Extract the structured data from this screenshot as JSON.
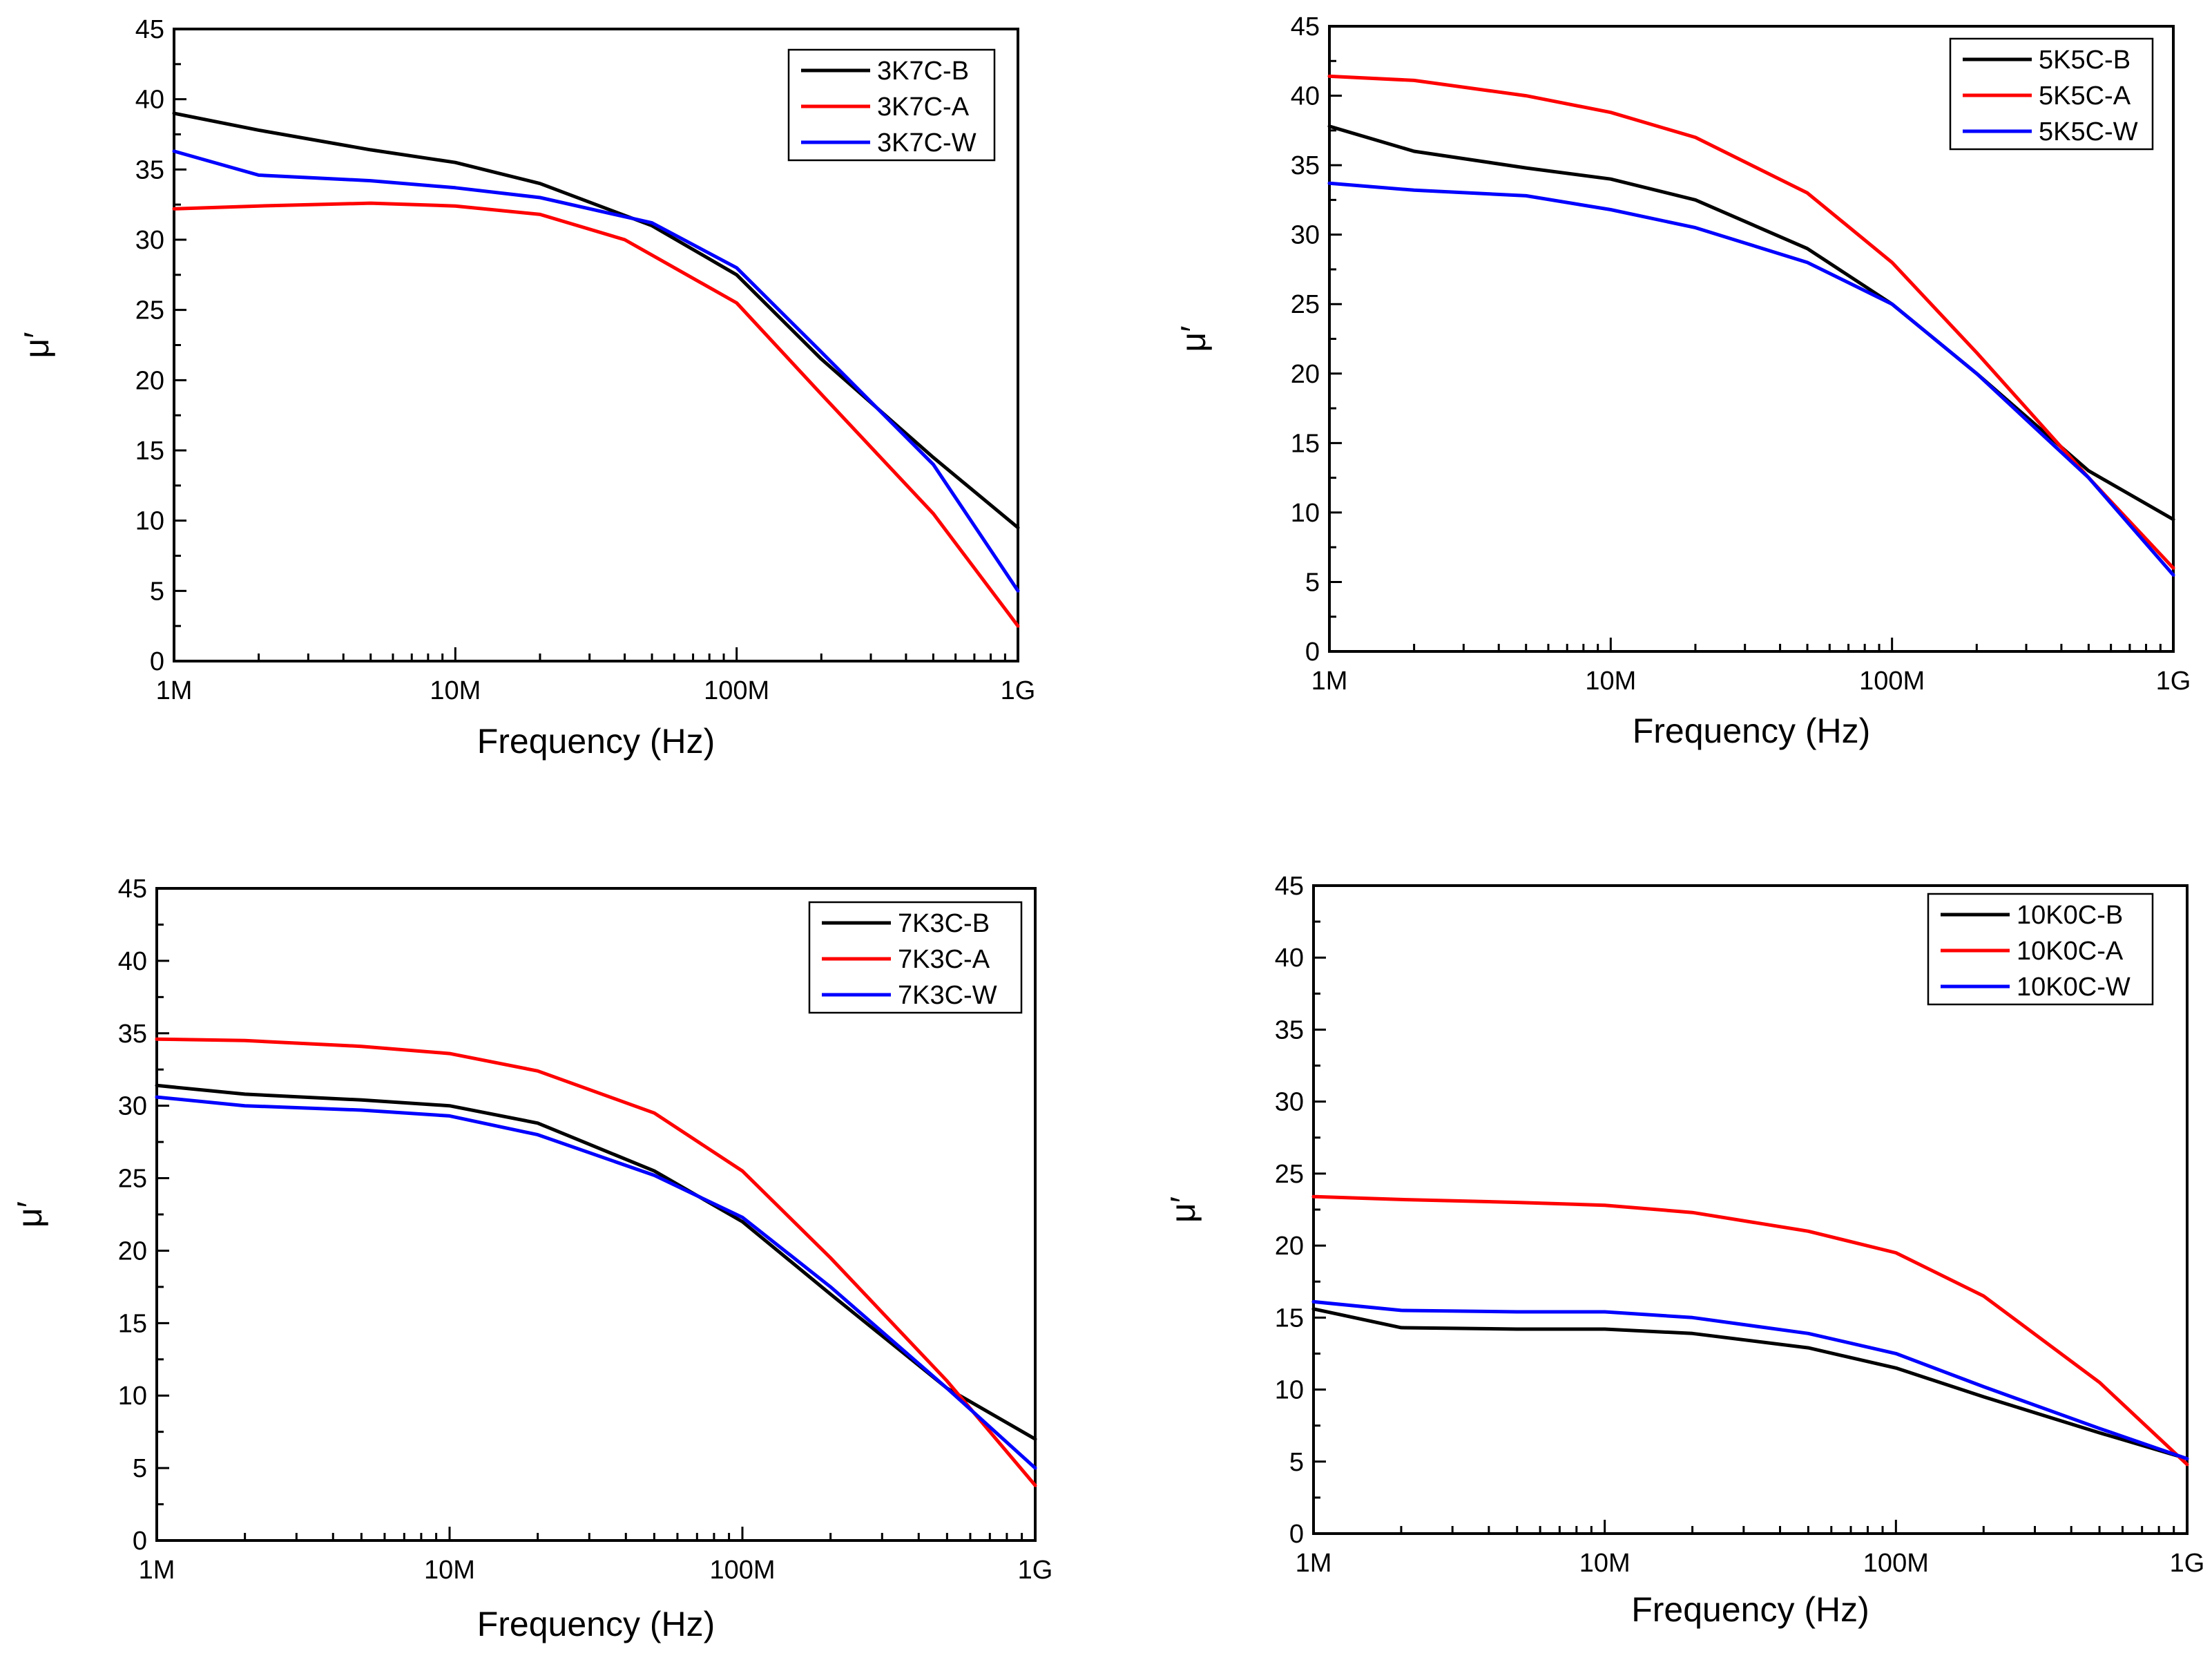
{
  "figure": {
    "description_count": 4
  },
  "chart_data": [
    {
      "type": "line",
      "xlabel": "Frequency (Hz)",
      "ylabel": "μ′",
      "x_scale": "log",
      "xlim": [
        1000000,
        1000000000
      ],
      "ylim": [
        0,
        45
      ],
      "x_ticks": [
        {
          "v": 1000000,
          "label": "1M"
        },
        {
          "v": 10000000,
          "label": "10M"
        },
        {
          "v": 100000000,
          "label": "100M"
        },
        {
          "v": 1000000000,
          "label": "1G"
        }
      ],
      "y_ticks": [
        0,
        5,
        10,
        15,
        20,
        25,
        30,
        35,
        40,
        45
      ],
      "legend_position": "top-right",
      "series": [
        {
          "name": "3K7C-B",
          "color": "#000000",
          "x": [
            1000000,
            2000000,
            5000000,
            10000000,
            20000000,
            50000000,
            100000000,
            200000000,
            500000000,
            1000000000
          ],
          "y": [
            39.0,
            37.8,
            36.4,
            35.5,
            34.0,
            31.0,
            27.5,
            21.5,
            14.5,
            9.5
          ]
        },
        {
          "name": "3K7C-A",
          "color": "#ff0000",
          "x": [
            1000000,
            2000000,
            5000000,
            10000000,
            20000000,
            40000000,
            100000000,
            200000000,
            500000000,
            1000000000
          ],
          "y": [
            32.2,
            32.4,
            32.6,
            32.4,
            31.8,
            30.0,
            25.5,
            19.0,
            10.5,
            2.5
          ]
        },
        {
          "name": "3K7C-W",
          "color": "#0000ff",
          "x": [
            1000000,
            2000000,
            5000000,
            10000000,
            20000000,
            50000000,
            100000000,
            200000000,
            500000000,
            1000000000
          ],
          "y": [
            36.3,
            34.6,
            34.2,
            33.7,
            33.0,
            31.2,
            28.0,
            22.0,
            14.0,
            5.0
          ]
        }
      ]
    },
    {
      "type": "line",
      "xlabel": "Frequency (Hz)",
      "ylabel": "μ′",
      "x_scale": "log",
      "xlim": [
        1000000,
        1000000000
      ],
      "ylim": [
        0,
        45
      ],
      "x_ticks": [
        {
          "v": 1000000,
          "label": "1M"
        },
        {
          "v": 10000000,
          "label": "10M"
        },
        {
          "v": 100000000,
          "label": "100M"
        },
        {
          "v": 1000000000,
          "label": "1G"
        }
      ],
      "y_ticks": [
        0,
        5,
        10,
        15,
        20,
        25,
        30,
        35,
        40,
        45
      ],
      "legend_position": "top-right",
      "series": [
        {
          "name": "5K5C-B",
          "color": "#000000",
          "x": [
            1000000,
            2000000,
            5000000,
            10000000,
            20000000,
            50000000,
            100000000,
            200000000,
            500000000,
            1000000000
          ],
          "y": [
            37.8,
            36.0,
            34.8,
            34.0,
            32.5,
            29.0,
            25.0,
            20.0,
            13.0,
            9.5
          ]
        },
        {
          "name": "5K5C-A",
          "color": "#ff0000",
          "x": [
            1000000,
            2000000,
            5000000,
            10000000,
            20000000,
            50000000,
            100000000,
            200000000,
            500000000,
            1000000000
          ],
          "y": [
            41.4,
            41.1,
            40.0,
            38.8,
            37.0,
            33.0,
            28.0,
            21.5,
            12.5,
            6.0
          ]
        },
        {
          "name": "5K5C-W",
          "color": "#0000ff",
          "x": [
            1000000,
            2000000,
            5000000,
            10000000,
            20000000,
            50000000,
            100000000,
            200000000,
            500000000,
            1000000000
          ],
          "y": [
            33.7,
            33.2,
            32.8,
            31.8,
            30.5,
            28.0,
            25.0,
            20.0,
            12.5,
            5.5
          ]
        }
      ]
    },
    {
      "type": "line",
      "xlabel": "Frequency (Hz)",
      "ylabel": "μ′",
      "x_scale": "log",
      "xlim": [
        1000000,
        1000000000
      ],
      "ylim": [
        0,
        45
      ],
      "x_ticks": [
        {
          "v": 1000000,
          "label": "1M"
        },
        {
          "v": 10000000,
          "label": "10M"
        },
        {
          "v": 100000000,
          "label": "100M"
        },
        {
          "v": 1000000000,
          "label": "1G"
        }
      ],
      "y_ticks": [
        0,
        5,
        10,
        15,
        20,
        25,
        30,
        35,
        40,
        45
      ],
      "legend_position": "top-right",
      "series": [
        {
          "name": "7K3C-B",
          "color": "#000000",
          "x": [
            1000000,
            2000000,
            5000000,
            10000000,
            20000000,
            50000000,
            100000000,
            200000000,
            500000000,
            1000000000
          ],
          "y": [
            31.4,
            30.8,
            30.4,
            30.0,
            28.8,
            25.5,
            22.0,
            17.0,
            10.5,
            7.0
          ]
        },
        {
          "name": "7K3C-A",
          "color": "#ff0000",
          "x": [
            1000000,
            2000000,
            5000000,
            10000000,
            20000000,
            50000000,
            100000000,
            200000000,
            500000000,
            1000000000
          ],
          "y": [
            34.6,
            34.5,
            34.1,
            33.6,
            32.4,
            29.5,
            25.5,
            19.5,
            11.0,
            3.8
          ]
        },
        {
          "name": "7K3C-W",
          "color": "#0000ff",
          "x": [
            1000000,
            2000000,
            5000000,
            10000000,
            20000000,
            50000000,
            100000000,
            200000000,
            500000000,
            1000000000
          ],
          "y": [
            30.6,
            30.0,
            29.7,
            29.3,
            28.0,
            25.2,
            22.3,
            17.5,
            10.5,
            5.0
          ]
        }
      ]
    },
    {
      "type": "line",
      "xlabel": "Frequency (Hz)",
      "ylabel": "μ′",
      "x_scale": "log",
      "xlim": [
        1000000,
        1000000000
      ],
      "ylim": [
        0,
        45
      ],
      "x_ticks": [
        {
          "v": 1000000,
          "label": "1M"
        },
        {
          "v": 10000000,
          "label": "10M"
        },
        {
          "v": 100000000,
          "label": "100M"
        },
        {
          "v": 1000000000,
          "label": "1G"
        }
      ],
      "y_ticks": [
        0,
        5,
        10,
        15,
        20,
        25,
        30,
        35,
        40,
        45
      ],
      "legend_position": "top-right",
      "series": [
        {
          "name": "10K0C-B",
          "color": "#000000",
          "x": [
            1000000,
            2000000,
            5000000,
            10000000,
            20000000,
            50000000,
            100000000,
            200000000,
            500000000,
            1000000000
          ],
          "y": [
            15.6,
            14.3,
            14.2,
            14.2,
            13.9,
            12.9,
            11.5,
            9.5,
            7.0,
            5.2
          ]
        },
        {
          "name": "10K0C-A",
          "color": "#ff0000",
          "x": [
            1000000,
            2000000,
            5000000,
            10000000,
            20000000,
            50000000,
            100000000,
            200000000,
            500000000,
            1000000000
          ],
          "y": [
            23.4,
            23.2,
            23.0,
            22.8,
            22.3,
            21.0,
            19.5,
            16.5,
            10.5,
            4.8
          ]
        },
        {
          "name": "10K0C-W",
          "color": "#0000ff",
          "x": [
            1000000,
            2000000,
            5000000,
            10000000,
            20000000,
            50000000,
            100000000,
            200000000,
            500000000,
            1000000000
          ],
          "y": [
            16.1,
            15.5,
            15.4,
            15.4,
            15.0,
            13.9,
            12.5,
            10.2,
            7.3,
            5.2
          ]
        }
      ]
    }
  ]
}
